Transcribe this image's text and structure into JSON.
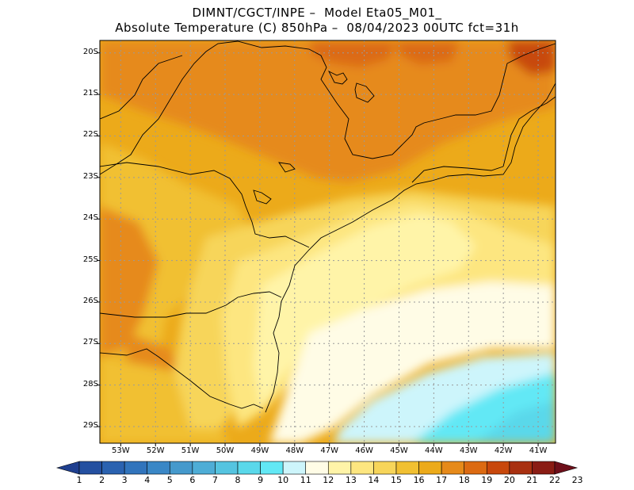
{
  "title": {
    "line1": "DIMNT/CGCT/INPE –  Model Eta05_M01_",
    "line2": "Absolute Temperature (C) 850hPa –  08/04/2023 00UTC fct=31h"
  },
  "map": {
    "region": "Southern & Southeastern Brazil",
    "variable": "Absolute Temperature (C) 850hPa",
    "lat_range": [
      -29.4,
      -19.7
    ],
    "lon_range": [
      -53.6,
      -40.5
    ],
    "lat_ticks": [
      "20S",
      "21S",
      "22S",
      "23S",
      "24S",
      "25S",
      "26S",
      "27S",
      "28S",
      "29S"
    ],
    "lon_ticks": [
      "53W",
      "52W",
      "51W",
      "50W",
      "49W",
      "48W",
      "47W",
      "46W",
      "45W",
      "44W",
      "43W",
      "42W",
      "41W"
    ]
  },
  "colorbar": {
    "labels": [
      "1",
      "2",
      "3",
      "4",
      "5",
      "6",
      "7",
      "8",
      "9",
      "10",
      "11",
      "12",
      "13",
      "14",
      "15",
      "16",
      "17",
      "18",
      "19",
      "20",
      "21",
      "22",
      "23"
    ],
    "colors": [
      "#1f3f8f",
      "#2450a0",
      "#2a62b0",
      "#3174bc",
      "#3a87c6",
      "#4599cc",
      "#4eadd6",
      "#55c4e0",
      "#5ad8ea",
      "#62e8f5",
      "#cdf5fb",
      "#fffce6",
      "#fff4a8",
      "#fde680",
      "#f7d55a",
      "#f1c032",
      "#ecaa1a",
      "#e68a1a",
      "#dc6a12",
      "#c8480c",
      "#a83010",
      "#8a1c14",
      "#6e0f1a"
    ]
  }
}
